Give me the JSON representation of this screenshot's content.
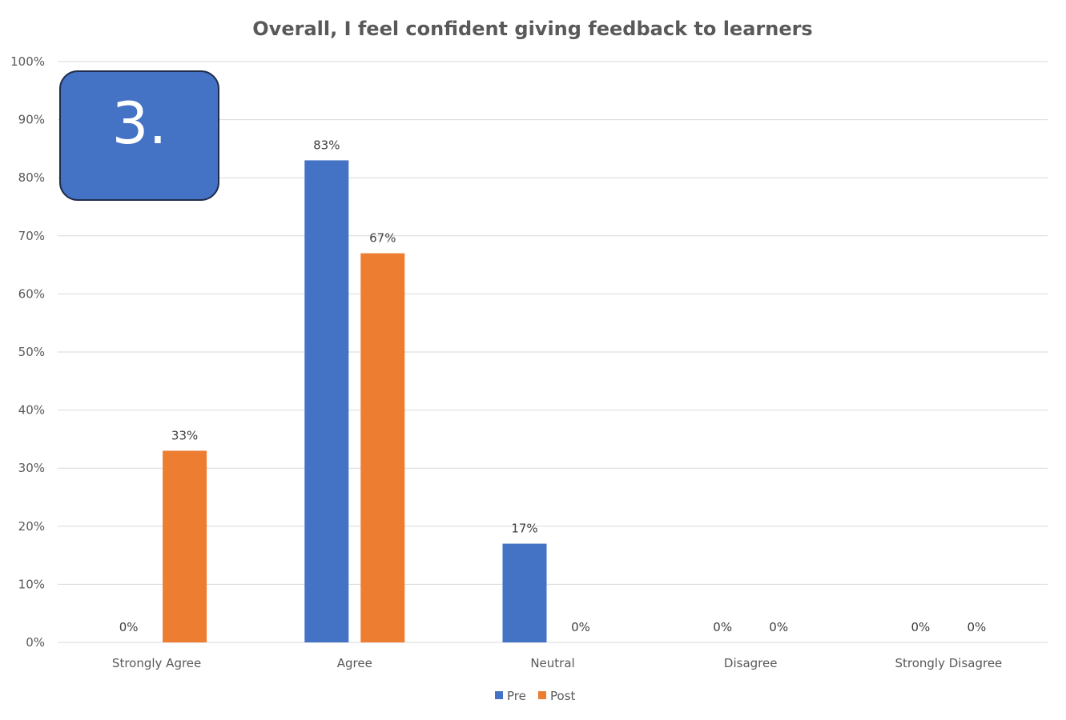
{
  "badge": {
    "label": "3.",
    "color": "#4472C4",
    "border_color": "#1F2D4A"
  },
  "colors": {
    "pre": "#4472C4",
    "post": "#ED7D31",
    "grid": "#D9D9D9",
    "text": "#595959"
  },
  "chart_data": {
    "type": "bar",
    "title": "Overall, I feel confident giving feedback to learners",
    "xlabel": "",
    "ylabel": "",
    "ylim": [
      0,
      100
    ],
    "y_ticks": [
      "0%",
      "10%",
      "20%",
      "30%",
      "40%",
      "50%",
      "60%",
      "70%",
      "80%",
      "90%",
      "100%"
    ],
    "y_tick_values": [
      0,
      10,
      20,
      30,
      40,
      50,
      60,
      70,
      80,
      90,
      100
    ],
    "categories": [
      "Strongly Agree",
      "Agree",
      "Neutral",
      "Disagree",
      "Strongly Disagree"
    ],
    "series": [
      {
        "name": "Pre",
        "values": [
          0,
          83,
          17,
          0,
          0
        ],
        "labels": [
          "0%",
          "83%",
          "17%",
          "0%",
          "0%"
        ]
      },
      {
        "name": "Post",
        "values": [
          33,
          67,
          0,
          0,
          0
        ],
        "labels": [
          "33%",
          "67%",
          "0%",
          "0%",
          "0%"
        ]
      }
    ],
    "grid": true,
    "legend_position": "bottom"
  }
}
